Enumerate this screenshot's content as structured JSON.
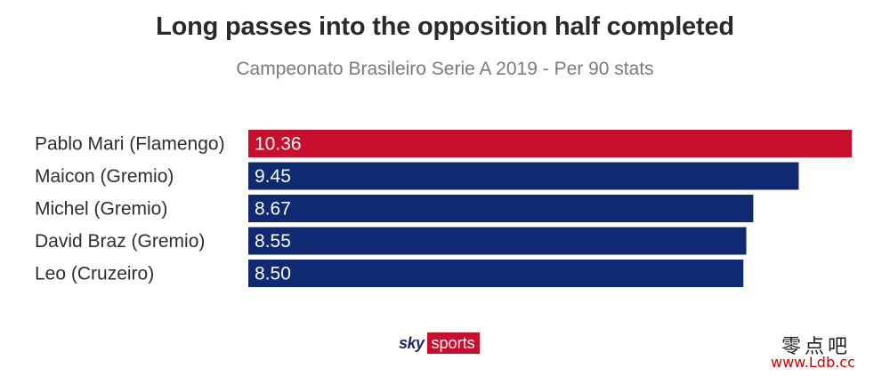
{
  "chart_data": {
    "type": "bar",
    "orientation": "horizontal",
    "title": "Long passes into the opposition half completed",
    "subtitle": "Campeonato Brasileiro Serie A 2019 - Per 90 stats",
    "categories": [
      "Pablo Mari (Flamengo)",
      "Maicon (Gremio)",
      "Michel (Gremio)",
      "David Braz (Gremio)",
      "Leo (Cruzeiro)"
    ],
    "values": [
      10.36,
      9.45,
      8.67,
      8.55,
      8.5
    ],
    "value_labels": [
      "10.36",
      "9.45",
      "8.67",
      "8.55",
      "8.50"
    ],
    "colors": [
      "#c8102e",
      "#0f2a72",
      "#0f2a72",
      "#0f2a72",
      "#0f2a72"
    ],
    "xlim": [
      0,
      10.36
    ],
    "grid": false,
    "legend": "none"
  },
  "branding": {
    "logo_sky": "sky",
    "logo_sports": "sports",
    "watermark_cn": "零点吧",
    "watermark_url": "www.Ldb.cc"
  }
}
